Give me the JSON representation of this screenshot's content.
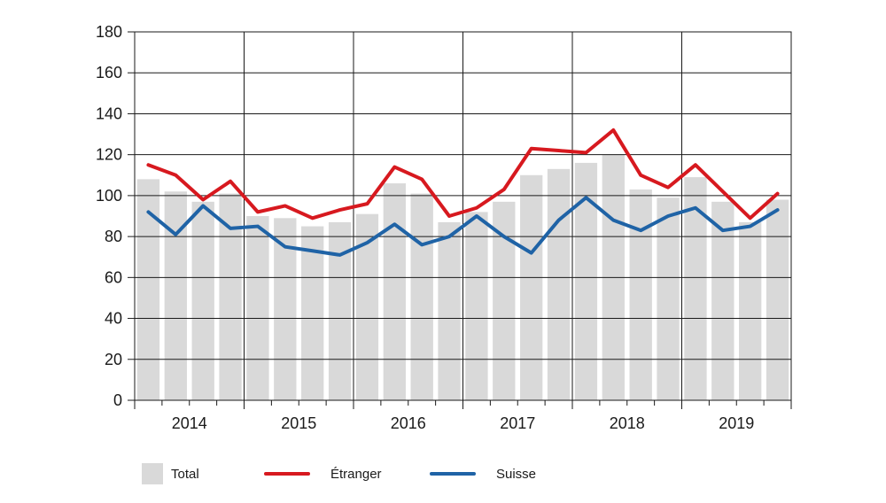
{
  "chart_data": {
    "type": "bar",
    "title": "",
    "xlabel": "",
    "ylabel": "",
    "ylim": [
      0,
      180
    ],
    "yticks": [
      0,
      20,
      40,
      60,
      80,
      100,
      120,
      140,
      160,
      180
    ],
    "grid": true,
    "legend_position": "bottom",
    "years": [
      "2014",
      "2015",
      "2016",
      "2017",
      "2018",
      "2019"
    ],
    "periods_per_year": 4,
    "categories": [
      "2014 T1",
      "2014 T2",
      "2014 T3",
      "2014 T4",
      "2015 T1",
      "2015 T2",
      "2015 T3",
      "2015 T4",
      "2016 T1",
      "2016 T2",
      "2016 T3",
      "2016 T4",
      "2017 T1",
      "2017 T2",
      "2017 T3",
      "2017 T4",
      "2018 T1",
      "2018 T2",
      "2018 T3",
      "2018 T4",
      "2019 T1",
      "2019 T2",
      "2019 T3",
      "2019 T4"
    ],
    "series": [
      {
        "name": "Total",
        "type": "bar",
        "color": "#d9d9d9",
        "values": [
          108,
          102,
          97,
          101,
          90,
          89,
          85,
          87,
          91,
          106,
          101,
          87,
          92,
          97,
          110,
          113,
          116,
          120,
          103,
          99,
          109,
          97,
          87,
          98
        ]
      },
      {
        "name": "Étranger",
        "type": "line",
        "color": "#d7191f",
        "values": [
          115,
          110,
          98,
          107,
          92,
          95,
          89,
          93,
          96,
          114,
          108,
          90,
          94,
          103,
          123,
          122,
          121,
          132,
          110,
          104,
          115,
          102,
          89,
          101
        ]
      },
      {
        "name": "Suisse",
        "type": "line",
        "color": "#1f63a6",
        "values": [
          92,
          81,
          95,
          84,
          85,
          75,
          73,
          71,
          77,
          86,
          76,
          80,
          90,
          80,
          72,
          88,
          99,
          88,
          83,
          90,
          94,
          83,
          85,
          93
        ]
      }
    ]
  }
}
